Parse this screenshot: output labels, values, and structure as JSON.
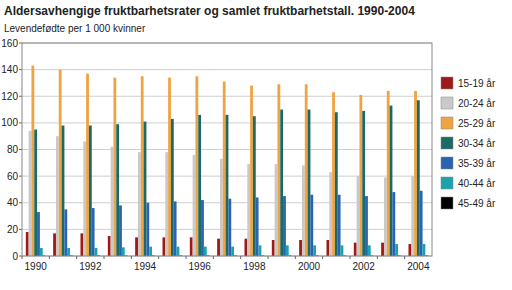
{
  "chart_data": {
    "type": "bar",
    "title": "Aldersavhengige fruktbarhetsrater og samlet fruktbarhetstall. 1990-2004",
    "y_label": "Levendefødte per 1 000 kvinner",
    "categories": [
      "1990",
      null,
      "1992",
      null,
      "1994",
      null,
      "1996",
      null,
      "1998",
      null,
      "2000",
      null,
      "2002",
      null,
      "2004"
    ],
    "series": [
      {
        "name": "15-19 år",
        "color": "#9e1a16",
        "values": [
          18,
          17,
          17,
          15,
          14,
          14,
          14,
          13,
          13,
          12,
          12,
          12,
          10,
          10,
          9
        ]
      },
      {
        "name": "20-24 år",
        "color": "#c9c9c9",
        "values": [
          94,
          90,
          86,
          82,
          78,
          78,
          76,
          73,
          69,
          69,
          68,
          63,
          60,
          59,
          60
        ]
      },
      {
        "name": "25-29 år",
        "color": "#f0a342",
        "values": [
          143,
          140,
          137,
          134,
          135,
          134,
          135,
          131,
          128,
          129,
          129,
          123,
          121,
          124,
          124
        ]
      },
      {
        "name": "30-34 år",
        "color": "#1c6a66",
        "values": [
          95,
          98,
          98,
          99,
          101,
          103,
          106,
          106,
          105,
          110,
          110,
          108,
          109,
          113,
          117
        ]
      },
      {
        "name": "35-39 år",
        "color": "#2a62b4",
        "values": [
          33,
          35,
          36,
          38,
          40,
          41,
          42,
          43,
          44,
          45,
          46,
          46,
          45,
          48,
          49
        ]
      },
      {
        "name": "40-44 år",
        "color": "#1aa3ac",
        "values": [
          6,
          6,
          6,
          6.5,
          7,
          7,
          7,
          7,
          8,
          8,
          8,
          8,
          8,
          9,
          9
        ]
      },
      {
        "name": "45-49 år",
        "color": "#000000",
        "values": [
          0.3,
          0.3,
          0.3,
          0.3,
          0.3,
          0.3,
          0.3,
          0.3,
          0.3,
          0.3,
          0.3,
          0.3,
          0.3,
          0.3,
          0.3
        ]
      }
    ],
    "ylim": [
      0,
      160
    ],
    "yticks": [
      0,
      20,
      40,
      60,
      80,
      100,
      120,
      140,
      160
    ],
    "grid": true,
    "legend": "right"
  }
}
